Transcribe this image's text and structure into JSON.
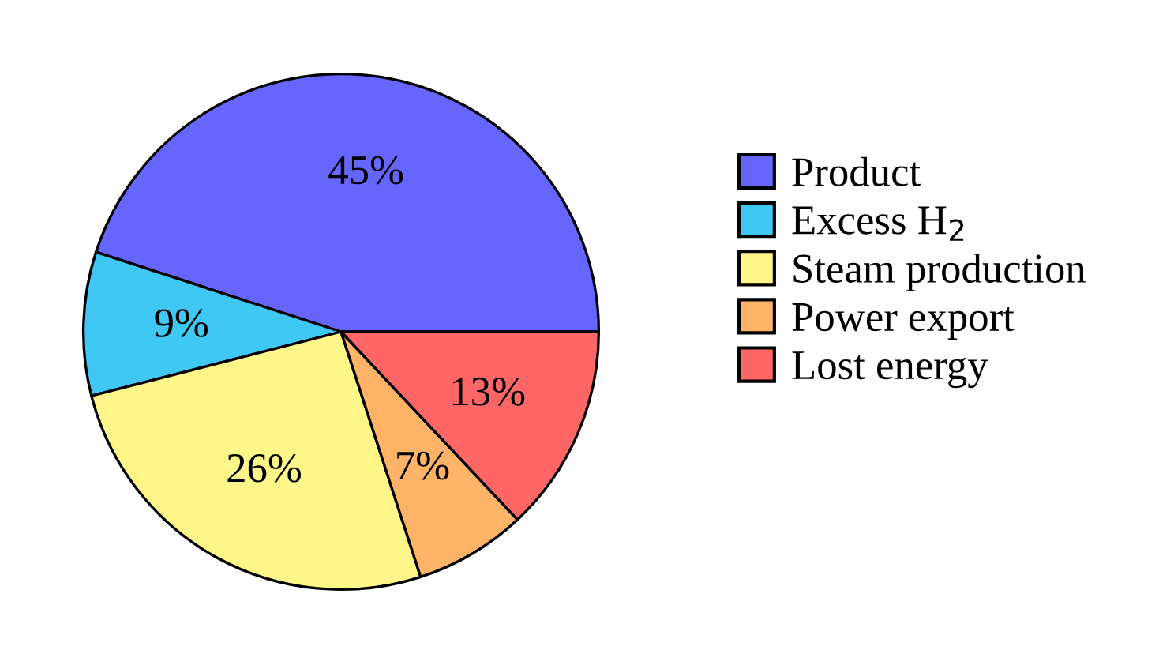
{
  "chart_data": {
    "type": "pie",
    "categories": [
      "Product",
      "Excess H$_{2}$",
      "Steam production",
      "Power export",
      "Lost energy"
    ],
    "values": [
      45,
      9,
      26,
      7,
      13
    ],
    "colors": [
      "#6666ff",
      "#40c8f4",
      "#fff68a",
      "#ffb366",
      "#ff6666"
    ],
    "value_labels": [
      "45%",
      "9%",
      "26%",
      "7%",
      "13%"
    ],
    "legend": "right"
  }
}
